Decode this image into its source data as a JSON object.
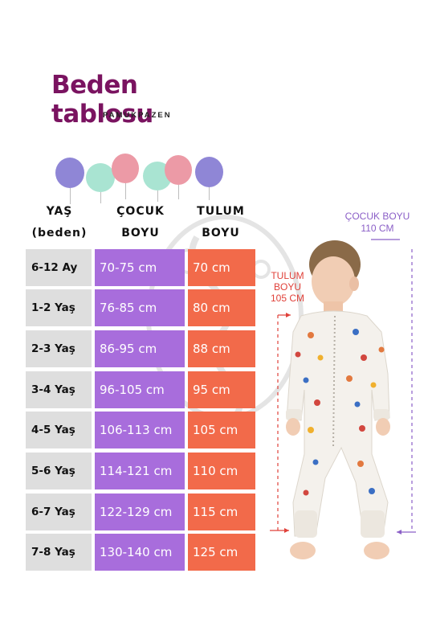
{
  "title": "Beden tablosu",
  "brand": "PAMUKPAZEN",
  "headers": {
    "age_line1": "YAŞ",
    "age_line2": "(beden)",
    "child_line1": "ÇOCUK",
    "child_line2": "BOYU",
    "garment_line1": "TULUM",
    "garment_line2": "BOYU"
  },
  "balloon_colors": [
    "#8f86d6",
    "#a9e4d2",
    "#ec9aa6",
    "#a9e4d2",
    "#ec9aa6",
    "#8f86d6"
  ],
  "row_colors": {
    "age": "#dedede",
    "child_height": "#a86ddc",
    "garment_length": "#f26a4a"
  },
  "rows": [
    {
      "age": "6-12 Ay",
      "child_height": "70-75 cm",
      "garment_length": "70 cm"
    },
    {
      "age": "1-2 Yaş",
      "child_height": "76-85 cm",
      "garment_length": "80 cm"
    },
    {
      "age": "2-3 Yaş",
      "child_height": "86-95 cm",
      "garment_length": "88 cm"
    },
    {
      "age": "3-4 Yaş",
      "child_height": "96-105 cm",
      "garment_length": "95 cm"
    },
    {
      "age": "4-5 Yaş",
      "child_height": "106-113 cm",
      "garment_length": "105 cm"
    },
    {
      "age": "5-6 Yaş",
      "child_height": "114-121 cm",
      "garment_length": "110 cm"
    },
    {
      "age": "6-7 Yaş",
      "child_height": "122-129 cm",
      "garment_length": "115 cm"
    },
    {
      "age": "7-8 Yaş",
      "child_height": "130-140 cm",
      "garment_length": "125 cm"
    }
  ],
  "photo_labels": {
    "child_height_line1": "ÇOCUK BOYU",
    "child_height_line2": "110 CM",
    "garment_line1": "TULUM",
    "garment_line2": "BOYU",
    "garment_line3": "105 CM"
  }
}
